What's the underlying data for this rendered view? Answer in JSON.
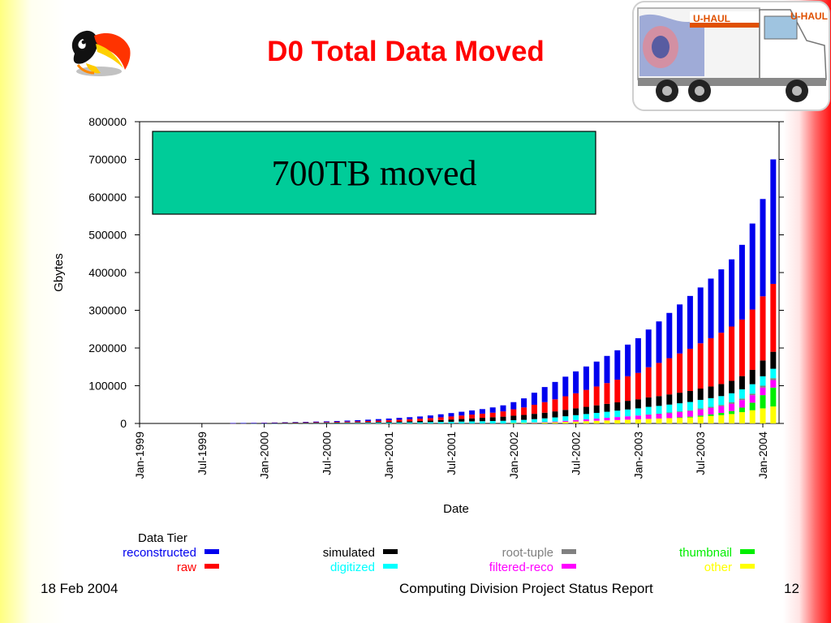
{
  "slide": {
    "title": "D0 Total Data Moved",
    "footer_date": "18 Feb  2004",
    "footer_title": "Computing Division Project Status Report",
    "page_number": "12"
  },
  "truck_logo": {
    "text_left": "U-HAUL",
    "text_right": "U-HAUL"
  },
  "chart_data": {
    "type": "bar",
    "stacked": true,
    "title": "",
    "xlabel": "Date",
    "ylabel": "Gbytes",
    "ylim": [
      0,
      800000
    ],
    "y_ticks": [
      "0",
      "100000",
      "200000",
      "300000",
      "400000",
      "500000",
      "600000",
      "700000",
      "800000"
    ],
    "x_tick_labels": [
      "Jan-1999",
      "Jul-1999",
      "Jan-2000",
      "Jul-2000",
      "Jan-2001",
      "Jul-2001",
      "Jan-2002",
      "Jul-2002",
      "Jan-2003",
      "Jul-2003",
      "Jan-2004"
    ],
    "x_start": "1999-01",
    "grid": false,
    "annotation": "700TB moved",
    "legend": {
      "title": "Data Tier",
      "placement": "bottom"
    },
    "categories": [
      "1999-10",
      "1999-11",
      "1999-12",
      "2000-01",
      "2000-02",
      "2000-03",
      "2000-04",
      "2000-05",
      "2000-06",
      "2000-07",
      "2000-08",
      "2000-09",
      "2000-10",
      "2000-11",
      "2000-12",
      "2001-01",
      "2001-02",
      "2001-03",
      "2001-04",
      "2001-05",
      "2001-06",
      "2001-07",
      "2001-08",
      "2001-09",
      "2001-10",
      "2001-11",
      "2001-12",
      "2002-01",
      "2002-02",
      "2002-03",
      "2002-04",
      "2002-05",
      "2002-06",
      "2002-07",
      "2002-08",
      "2002-09",
      "2002-10",
      "2002-11",
      "2002-12",
      "2003-01",
      "2003-02",
      "2003-03",
      "2003-04",
      "2003-05",
      "2003-06",
      "2003-07",
      "2003-08",
      "2003-09",
      "2003-10",
      "2003-11",
      "2003-12",
      "2004-01",
      "2004-02"
    ],
    "series": [
      {
        "name": "other",
        "color": "#ffff00",
        "values": [
          0,
          0,
          0,
          0,
          0,
          0,
          0,
          0,
          0,
          0,
          0,
          0,
          0,
          0,
          0,
          0,
          0,
          0,
          0,
          0,
          0,
          0,
          0,
          0,
          0,
          0,
          0,
          1000,
          1500,
          2000,
          2500,
          3000,
          4000,
          5000,
          6000,
          7000,
          8000,
          9000,
          10000,
          11000,
          12000,
          13000,
          14000,
          15000,
          16000,
          18000,
          20000,
          22000,
          25000,
          30000,
          35000,
          40000,
          45000
        ]
      },
      {
        "name": "thumbnail",
        "color": "#00ee00",
        "values": [
          0,
          0,
          0,
          0,
          0,
          0,
          0,
          0,
          0,
          0,
          0,
          0,
          0,
          0,
          0,
          0,
          0,
          0,
          0,
          0,
          0,
          0,
          0,
          0,
          0,
          0,
          0,
          0,
          0,
          0,
          0,
          0,
          0,
          0,
          0,
          0,
          0,
          0,
          0,
          0,
          0,
          0,
          0,
          1000,
          2000,
          3000,
          4000,
          6000,
          8000,
          12000,
          20000,
          35000,
          50000
        ]
      },
      {
        "name": "filtered-reco",
        "color": "#ff00ff",
        "values": [
          0,
          0,
          0,
          0,
          0,
          0,
          0,
          0,
          0,
          0,
          0,
          0,
          0,
          0,
          0,
          0,
          0,
          0,
          0,
          0,
          0,
          0,
          0,
          0,
          0,
          0,
          0,
          0,
          0,
          500,
          1000,
          2000,
          3000,
          4000,
          5000,
          6000,
          7000,
          8000,
          9000,
          10000,
          11000,
          12000,
          13000,
          14000,
          15000,
          16000,
          17000,
          18000,
          19000,
          20000,
          20000,
          20000,
          20000
        ]
      },
      {
        "name": "root-tuple",
        "color": "#808080",
        "values": [
          0,
          0,
          0,
          0,
          0,
          0,
          0,
          0,
          0,
          0,
          0,
          0,
          0,
          0,
          0,
          0,
          0,
          0,
          0,
          0,
          0,
          0,
          0,
          0,
          0,
          0,
          0,
          0,
          0,
          0,
          0,
          0,
          0,
          0,
          0,
          0,
          0,
          0,
          0,
          0,
          1000,
          1000,
          2000,
          2000,
          2000,
          3000,
          3000,
          3000,
          4000,
          4000,
          4000,
          5000,
          5000
        ]
      },
      {
        "name": "digitized",
        "color": "#00ffff",
        "values": [
          500,
          500,
          500,
          500,
          600,
          700,
          800,
          900,
          1000,
          1100,
          1200,
          1400,
          1600,
          1800,
          2000,
          2200,
          2500,
          2800,
          3100,
          3500,
          4000,
          4500,
          5000,
          5500,
          6000,
          6500,
          7000,
          7500,
          8000,
          9000,
          10000,
          11000,
          12000,
          13000,
          14000,
          15000,
          16000,
          17000,
          18000,
          19000,
          20000,
          20500,
          21000,
          21500,
          22000,
          22500,
          23000,
          23500,
          24000,
          24500,
          25000,
          25000,
          25000
        ]
      },
      {
        "name": "simulated",
        "color": "#000000",
        "values": [
          100,
          100,
          200,
          200,
          300,
          400,
          500,
          600,
          700,
          800,
          1000,
          1200,
          1400,
          1700,
          2000,
          2300,
          2700,
          3100,
          3600,
          4200,
          5000,
          6000,
          7000,
          8000,
          9000,
          10000,
          11000,
          12000,
          13000,
          14000,
          15000,
          16000,
          17000,
          18000,
          19000,
          20000,
          21000,
          22000,
          23000,
          24000,
          25000,
          26000,
          27000,
          28000,
          29000,
          30000,
          31000,
          32000,
          33000,
          35000,
          38000,
          42000,
          45000
        ]
      },
      {
        "name": "raw",
        "color": "#ff0000",
        "values": [
          300,
          400,
          500,
          600,
          800,
          1000,
          1200,
          1400,
          1600,
          1800,
          2000,
          2300,
          2600,
          3000,
          3500,
          4000,
          4600,
          5200,
          5800,
          6500,
          7300,
          8000,
          9000,
          10000,
          11000,
          12000,
          14000,
          17000,
          20000,
          24000,
          28000,
          32000,
          36000,
          40000,
          45000,
          50000,
          55000,
          60000,
          65000,
          70000,
          80000,
          88000,
          96000,
          104000,
          112000,
          120000,
          128000,
          136000,
          144000,
          150000,
          160000,
          170000,
          180000
        ]
      },
      {
        "name": "reconstructed",
        "color": "#0000ee",
        "values": [
          100,
          200,
          300,
          500,
          700,
          900,
          1100,
          1400,
          1700,
          2000,
          2300,
          2700,
          3100,
          3500,
          4000,
          4500,
          5000,
          5500,
          6000,
          7000,
          8000,
          9000,
          10000,
          11000,
          12000,
          14000,
          16000,
          19000,
          24000,
          32000,
          40000,
          46000,
          52000,
          58000,
          62000,
          66000,
          72000,
          78000,
          84000,
          92000,
          100000,
          110000,
          120000,
          130000,
          140000,
          148000,
          158000,
          168000,
          178000,
          198000,
          228000,
          258000,
          330000
        ]
      }
    ]
  }
}
